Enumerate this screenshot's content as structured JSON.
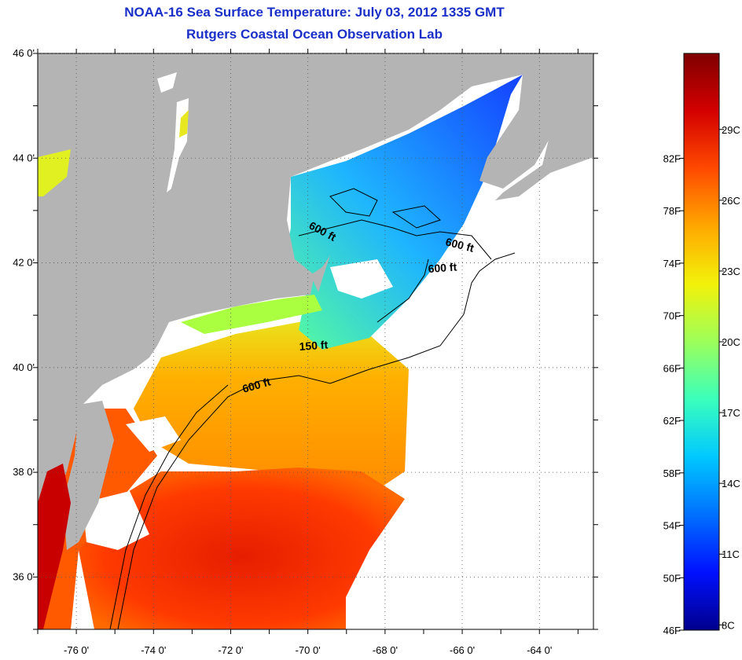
{
  "header": {
    "title": "NOAA-16 Sea Surface Temperature:  July 03, 2012 1335 GMT",
    "subtitle": "Rutgers Coastal Ocean Observation Lab"
  },
  "map": {
    "lat_ticks": [
      {
        "value": 46,
        "label": "46 0'"
      },
      {
        "value": 44,
        "label": "44 0'"
      },
      {
        "value": 42,
        "label": "42 0'"
      },
      {
        "value": 40,
        "label": "40 0'"
      },
      {
        "value": 38,
        "label": "38 0'"
      },
      {
        "value": 36,
        "label": "36 0'"
      }
    ],
    "lon_ticks": [
      {
        "value": -76,
        "label": "-76 0'"
      },
      {
        "value": -74,
        "label": "-74 0'"
      },
      {
        "value": -72,
        "label": "-72 0'"
      },
      {
        "value": -70,
        "label": "-70 0'"
      },
      {
        "value": -68,
        "label": "-68 0'"
      },
      {
        "value": -66,
        "label": "-66 0'"
      },
      {
        "value": -64,
        "label": "-64 0'"
      }
    ],
    "contour_labels": [
      "600 ft",
      "600 ft",
      "600 ft",
      "150 ft",
      "600 ft"
    ]
  },
  "colorbar": {
    "fahrenheit": [
      "82F",
      "78F",
      "74F",
      "70F",
      "66F",
      "62F",
      "58F",
      "54F",
      "50F",
      "46F"
    ],
    "celsius": [
      "29C",
      "26C",
      "23C",
      "20C",
      "17C",
      "14C",
      "11C",
      "8C"
    ],
    "colors": [
      "#7f0000",
      "#d40000",
      "#ff4a00",
      "#ffa800",
      "#f2f20a",
      "#9cff5a",
      "#3affbc",
      "#00c8ff",
      "#0070ff",
      "#0010ff",
      "#00008c"
    ]
  },
  "colors": {
    "land": "#b4b4b4",
    "no_data": "#ffffff",
    "title": "#1a2fc8"
  }
}
